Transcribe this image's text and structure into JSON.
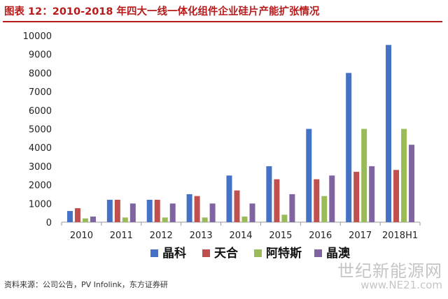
{
  "header": {
    "title": "图表 12：2010-2018 年四大一线一体化组件企业硅片产能扩张情况"
  },
  "chart_data": {
    "type": "bar",
    "categories": [
      "2010",
      "2011",
      "2012",
      "2013",
      "2014",
      "2015",
      "2016",
      "2017",
      "2018H1"
    ],
    "series": [
      {
        "name": "晶科",
        "color": "#4472c4",
        "values": [
          600,
          1200,
          1200,
          1500,
          2500,
          3000,
          5000,
          8000,
          9500
        ]
      },
      {
        "name": "天合",
        "color": "#c0504d",
        "values": [
          750,
          1200,
          1200,
          1400,
          1700,
          2300,
          2300,
          2700,
          2800
        ]
      },
      {
        "name": "阿特斯",
        "color": "#9bbb59",
        "values": [
          200,
          250,
          250,
          250,
          300,
          400,
          1400,
          5000,
          5000
        ]
      },
      {
        "name": "晶澳",
        "color": "#8064a2",
        "values": [
          300,
          1000,
          1000,
          1000,
          1000,
          1500,
          2500,
          3000,
          4150
        ]
      }
    ],
    "ylim": [
      0,
      10000
    ],
    "yticks": [
      0,
      1000,
      2000,
      3000,
      4000,
      5000,
      6000,
      7000,
      8000,
      9000,
      10000
    ],
    "grid": false,
    "legend_position": "bottom"
  },
  "footer": {
    "source": "资料来源：公司公告，PV Infolink，东方证券研",
    "watermark_name": "世纪新能源网",
    "watermark_url": "www.NE21.com"
  }
}
